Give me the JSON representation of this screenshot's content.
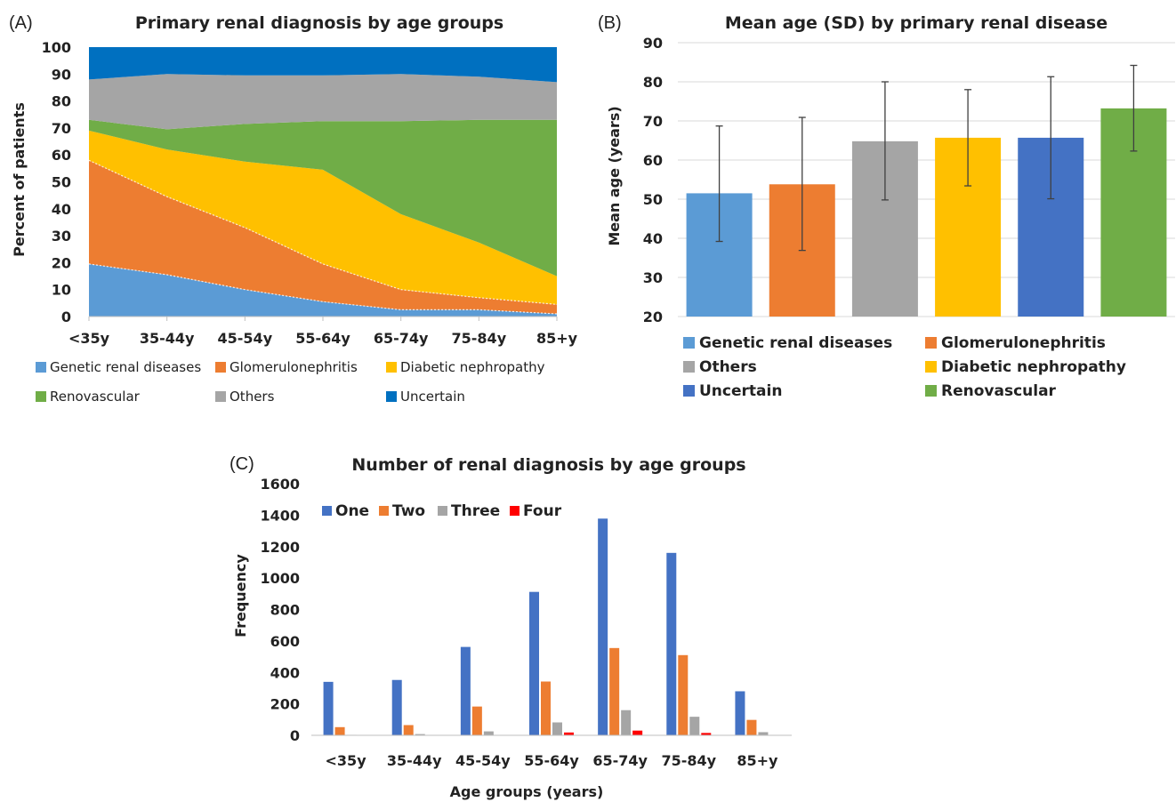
{
  "chart_data": [
    {
      "panel": "(A)",
      "type": "area",
      "stacked": true,
      "title": "Primary renal diagnosis by age groups",
      "xlabel": "",
      "ylabel": "Percent of patients",
      "ylim": [
        0,
        100
      ],
      "yticks": [
        "0",
        "10",
        "20",
        "30",
        "40",
        "50",
        "60",
        "70",
        "80",
        "90",
        "100"
      ],
      "categories": [
        "<35y",
        "35-44y",
        "45-54y",
        "55-64y",
        "65-74y",
        "75-84y",
        "85+y"
      ],
      "series": [
        {
          "name": "Genetic renal diseases",
          "color": "#5b9bd5",
          "values": [
            19.5,
            15.5,
            10,
            5.5,
            2.5,
            2.5,
            1
          ]
        },
        {
          "name": "Glomerulonephritis",
          "color": "#ed7d31",
          "values": [
            38.5,
            29,
            23,
            14,
            7.5,
            4.5,
            3.5
          ]
        },
        {
          "name": "Diabetic nephropathy",
          "color": "#ffc000",
          "values": [
            11,
            17.5,
            24.5,
            35,
            28,
            20.5,
            10.5
          ]
        },
        {
          "name": "Renovascular",
          "color": "#70ad47",
          "values": [
            4,
            7.5,
            14,
            18,
            34.5,
            45.5,
            58
          ]
        },
        {
          "name": "Others",
          "color": "#a5a5a5",
          "values": [
            15,
            20.5,
            18,
            17,
            17.5,
            16,
            14
          ]
        },
        {
          "name": "Uncertain",
          "color": "#0070c0",
          "values": [
            12,
            10,
            10.5,
            10.5,
            10,
            11,
            13
          ]
        }
      ],
      "legend_placement": "bottom"
    },
    {
      "panel": "(B)",
      "type": "bar",
      "title": "Mean age (SD) by primary renal disease",
      "xlabel": "",
      "ylabel": "Mean age (years)",
      "ylim": [
        20,
        90
      ],
      "yticks": [
        "20",
        "30",
        "40",
        "50",
        "60",
        "70",
        "80",
        "90"
      ],
      "categories": [
        "Genetic renal diseases",
        "Glomerulonephritis",
        "Others",
        "Diabetic nephropathy",
        "Uncertain",
        "Renovascular"
      ],
      "values": [
        51.5,
        53.8,
        64.8,
        65.7,
        65.7,
        73.2
      ],
      "error_low": [
        39.2,
        36.9,
        49.8,
        53.4,
        50.1,
        62.3
      ],
      "error_high": [
        68.7,
        70.9,
        80.0,
        78.0,
        81.3,
        84.2
      ],
      "colors": [
        "#5b9bd5",
        "#ed7d31",
        "#a5a5a5",
        "#ffc000",
        "#4472c4",
        "#70ad47"
      ],
      "legend_placement": "bottom"
    },
    {
      "panel": "(C)",
      "type": "bar",
      "title": "Number of renal diagnosis by age groups",
      "xlabel": "Age groups (years)",
      "ylabel": "Frequency",
      "ylim": [
        0,
        1600
      ],
      "yticks": [
        "0",
        "200",
        "400",
        "600",
        "800",
        "1000",
        "1200",
        "1400",
        "1600"
      ],
      "categories": [
        "<35y",
        "35-44y",
        "45-54y",
        "55-64y",
        "65-74y",
        "75-84y",
        "85+y"
      ],
      "series": [
        {
          "name": "One",
          "color": "#4472c4",
          "values": [
            340,
            352,
            562,
            912,
            1378,
            1160,
            280
          ]
        },
        {
          "name": "Two",
          "color": "#ed7d31",
          "values": [
            52,
            65,
            183,
            342,
            555,
            510,
            98
          ]
        },
        {
          "name": "Three",
          "color": "#a5a5a5",
          "values": [
            3,
            8,
            25,
            82,
            160,
            118,
            20
          ]
        },
        {
          "name": "Four",
          "color": "#ff0000",
          "values": [
            0,
            0,
            2,
            18,
            30,
            15,
            2
          ]
        }
      ],
      "legend_placement": "top-left"
    }
  ]
}
